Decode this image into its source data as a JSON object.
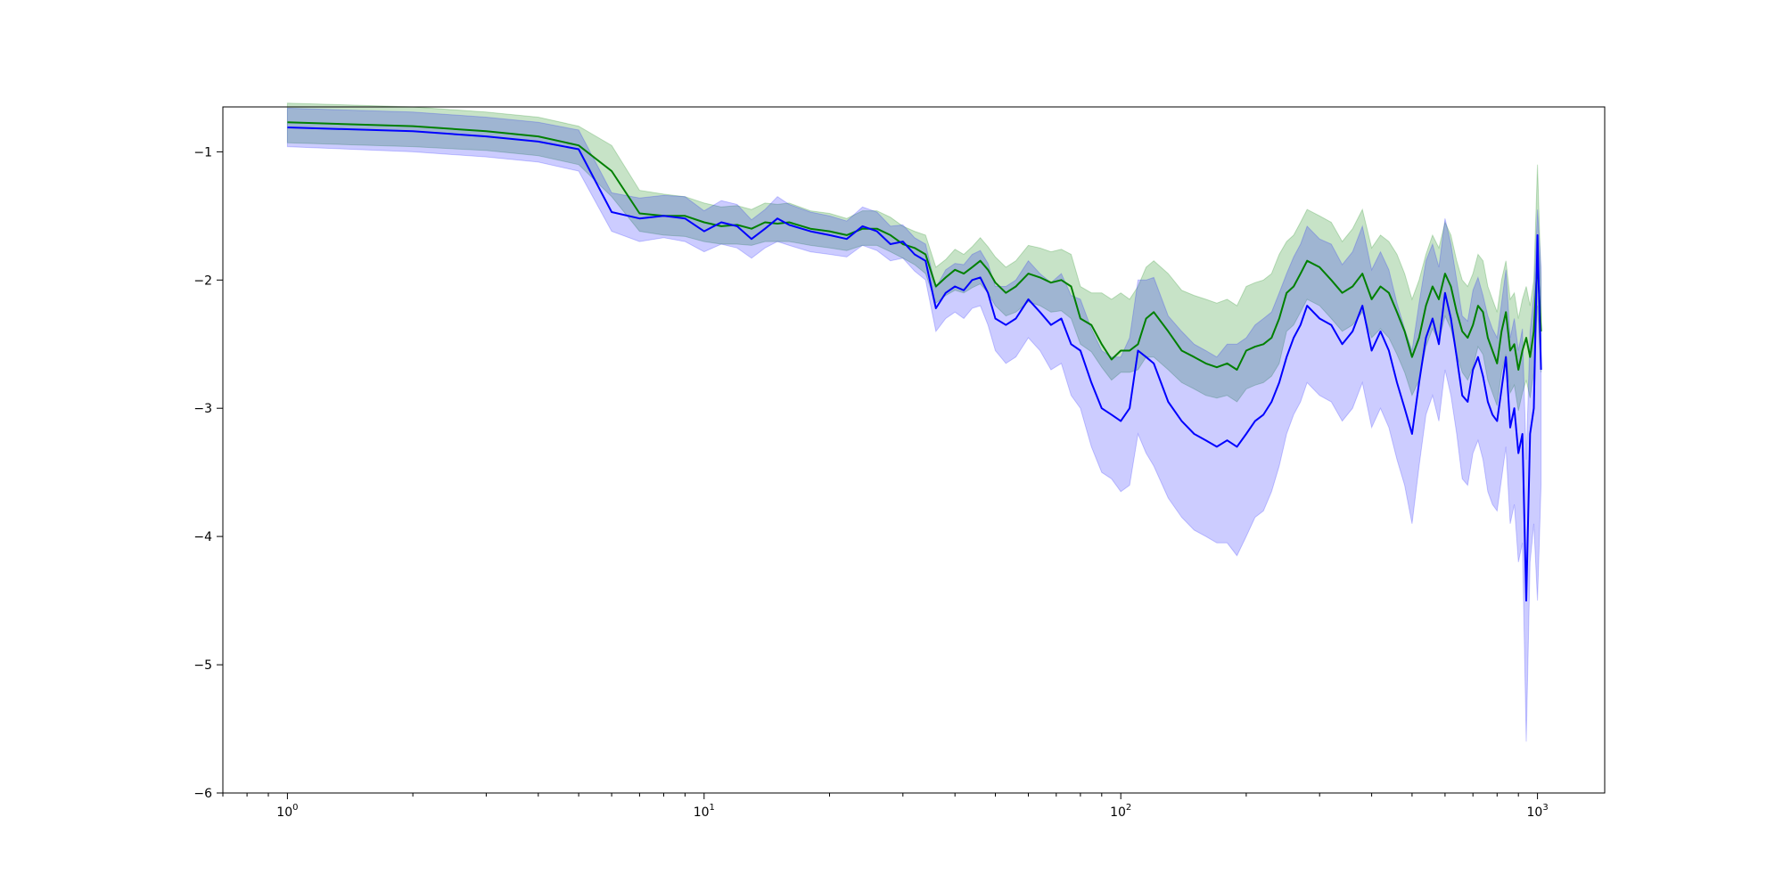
{
  "chart_data": {
    "type": "line",
    "title": "",
    "xlabel": "",
    "ylabel": "",
    "x_scale": "log",
    "xlim": [
      0.7,
      1450
    ],
    "ylim": [
      -6,
      -0.65
    ],
    "grid": false,
    "legend": "none",
    "x_ticks": [
      {
        "value": 1,
        "base": "10",
        "exp": "0"
      },
      {
        "value": 10,
        "base": "10",
        "exp": "1"
      },
      {
        "value": 100,
        "base": "10",
        "exp": "2"
      },
      {
        "value": 1000,
        "base": "10",
        "exp": "3"
      }
    ],
    "y_ticks": [
      {
        "value": -1,
        "label": "−1"
      },
      {
        "value": -2,
        "label": "−2"
      },
      {
        "value": -3,
        "label": "−3"
      },
      {
        "value": -4,
        "label": "−4"
      },
      {
        "value": -5,
        "label": "−5"
      },
      {
        "value": -6,
        "label": "−6"
      }
    ],
    "x": [
      1,
      2,
      3,
      4,
      5,
      6,
      7,
      8,
      9,
      10,
      11,
      12,
      13,
      14,
      15,
      16,
      18,
      20,
      22,
      24,
      26,
      28,
      30,
      32,
      34,
      36,
      38,
      40,
      42,
      44,
      46,
      48,
      50,
      53,
      56,
      60,
      64,
      68,
      72,
      76,
      80,
      85,
      90,
      95,
      100,
      105,
      110,
      115,
      120,
      130,
      140,
      150,
      160,
      170,
      180,
      190,
      200,
      210,
      220,
      230,
      240,
      250,
      260,
      270,
      280,
      300,
      320,
      340,
      360,
      380,
      400,
      420,
      440,
      460,
      480,
      500,
      520,
      540,
      560,
      580,
      600,
      620,
      640,
      660,
      680,
      700,
      720,
      740,
      760,
      780,
      800,
      820,
      840,
      860,
      880,
      900,
      920,
      940,
      960,
      980,
      1000,
      1020
    ],
    "series": [
      {
        "color": "#008000",
        "band_color": "#008000",
        "band_opacity": 0.22,
        "values": [
          -0.77,
          -0.8,
          -0.84,
          -0.88,
          -0.95,
          -1.15,
          -1.48,
          -1.5,
          -1.5,
          -1.55,
          -1.58,
          -1.57,
          -1.6,
          -1.55,
          -1.56,
          -1.55,
          -1.6,
          -1.62,
          -1.65,
          -1.6,
          -1.6,
          -1.65,
          -1.72,
          -1.75,
          -1.8,
          -2.05,
          -1.98,
          -1.92,
          -1.95,
          -1.9,
          -1.85,
          -1.92,
          -2.02,
          -2.1,
          -2.05,
          -1.95,
          -1.98,
          -2.02,
          -2.0,
          -2.05,
          -2.3,
          -2.35,
          -2.5,
          -2.62,
          -2.55,
          -2.55,
          -2.5,
          -2.3,
          -2.25,
          -2.4,
          -2.55,
          -2.6,
          -2.65,
          -2.68,
          -2.65,
          -2.7,
          -2.55,
          -2.52,
          -2.5,
          -2.45,
          -2.3,
          -2.1,
          -2.05,
          -1.95,
          -1.85,
          -1.9,
          -2.0,
          -2.1,
          -2.05,
          -1.95,
          -2.15,
          -2.05,
          -2.1,
          -2.25,
          -2.4,
          -2.6,
          -2.45,
          -2.2,
          -2.05,
          -2.15,
          -1.95,
          -2.05,
          -2.25,
          -2.4,
          -2.45,
          -2.35,
          -2.2,
          -2.25,
          -2.45,
          -2.55,
          -2.65,
          -2.4,
          -2.25,
          -2.55,
          -2.5,
          -2.7,
          -2.55,
          -2.45,
          -2.6,
          -2.4,
          -1.85,
          -2.4
        ],
        "lower": [
          -0.93,
          -0.96,
          -0.99,
          -1.03,
          -1.1,
          -1.35,
          -1.62,
          -1.65,
          -1.66,
          -1.7,
          -1.72,
          -1.72,
          -1.73,
          -1.7,
          -1.7,
          -1.7,
          -1.73,
          -1.75,
          -1.77,
          -1.73,
          -1.73,
          -1.78,
          -1.83,
          -1.88,
          -1.95,
          -2.18,
          -2.12,
          -2.08,
          -2.1,
          -2.06,
          -2.03,
          -2.1,
          -2.2,
          -2.28,
          -2.25,
          -2.17,
          -2.2,
          -2.25,
          -2.24,
          -2.3,
          -2.5,
          -2.56,
          -2.68,
          -2.78,
          -2.72,
          -2.72,
          -2.7,
          -2.6,
          -2.6,
          -2.7,
          -2.8,
          -2.85,
          -2.9,
          -2.92,
          -2.9,
          -2.95,
          -2.85,
          -2.82,
          -2.8,
          -2.75,
          -2.65,
          -2.4,
          -2.35,
          -2.25,
          -2.15,
          -2.2,
          -2.3,
          -2.4,
          -2.35,
          -2.25,
          -2.45,
          -2.38,
          -2.45,
          -2.58,
          -2.72,
          -2.9,
          -2.78,
          -2.52,
          -2.38,
          -2.48,
          -2.28,
          -2.38,
          -2.58,
          -2.72,
          -2.78,
          -2.68,
          -2.52,
          -2.58,
          -2.78,
          -2.88,
          -2.98,
          -2.72,
          -2.58,
          -2.88,
          -2.82,
          -3.02,
          -2.88,
          -2.78,
          -2.92,
          -2.72,
          -2.2,
          -2.72
        ],
        "upper": [
          -0.62,
          -0.65,
          -0.69,
          -0.73,
          -0.8,
          -0.95,
          -1.3,
          -1.33,
          -1.35,
          -1.4,
          -1.43,
          -1.42,
          -1.45,
          -1.4,
          -1.41,
          -1.4,
          -1.46,
          -1.48,
          -1.52,
          -1.46,
          -1.46,
          -1.51,
          -1.58,
          -1.62,
          -1.65,
          -1.9,
          -1.84,
          -1.76,
          -1.8,
          -1.74,
          -1.67,
          -1.74,
          -1.82,
          -1.9,
          -1.85,
          -1.73,
          -1.75,
          -1.78,
          -1.76,
          -1.8,
          -2.05,
          -2.1,
          -2.1,
          -2.15,
          -2.1,
          -2.15,
          -2.05,
          -1.9,
          -1.85,
          -1.95,
          -2.08,
          -2.12,
          -2.15,
          -2.18,
          -2.15,
          -2.2,
          -2.05,
          -2.02,
          -2.0,
          -1.95,
          -1.8,
          -1.7,
          -1.65,
          -1.55,
          -1.45,
          -1.5,
          -1.55,
          -1.7,
          -1.6,
          -1.45,
          -1.75,
          -1.65,
          -1.7,
          -1.8,
          -1.95,
          -2.15,
          -2.0,
          -1.8,
          -1.65,
          -1.75,
          -1.55,
          -1.65,
          -1.85,
          -2.0,
          -2.05,
          -1.95,
          -1.8,
          -1.85,
          -2.05,
          -2.15,
          -2.25,
          -2.0,
          -1.85,
          -2.15,
          -2.1,
          -2.3,
          -2.15,
          -2.05,
          -2.2,
          -2.0,
          -1.1,
          -2.0
        ]
      },
      {
        "color": "#0000ff",
        "band_color": "#0000ff",
        "band_opacity": 0.2,
        "values": [
          -0.81,
          -0.84,
          -0.88,
          -0.92,
          -0.98,
          -1.47,
          -1.52,
          -1.5,
          -1.52,
          -1.62,
          -1.55,
          -1.58,
          -1.68,
          -1.6,
          -1.52,
          -1.57,
          -1.62,
          -1.65,
          -1.68,
          -1.58,
          -1.62,
          -1.72,
          -1.7,
          -1.8,
          -1.85,
          -2.22,
          -2.1,
          -2.05,
          -2.08,
          -2.0,
          -1.98,
          -2.1,
          -2.3,
          -2.35,
          -2.3,
          -2.15,
          -2.25,
          -2.35,
          -2.3,
          -2.5,
          -2.55,
          -2.8,
          -3.0,
          -3.05,
          -3.1,
          -3.0,
          -2.55,
          -2.6,
          -2.65,
          -2.95,
          -3.1,
          -3.2,
          -3.25,
          -3.3,
          -3.25,
          -3.3,
          -3.2,
          -3.1,
          -3.05,
          -2.95,
          -2.8,
          -2.6,
          -2.45,
          -2.35,
          -2.2,
          -2.3,
          -2.35,
          -2.5,
          -2.4,
          -2.2,
          -2.55,
          -2.4,
          -2.55,
          -2.8,
          -3.0,
          -3.2,
          -2.8,
          -2.45,
          -2.3,
          -2.5,
          -2.1,
          -2.3,
          -2.6,
          -2.9,
          -2.95,
          -2.7,
          -2.6,
          -2.75,
          -2.95,
          -3.05,
          -3.1,
          -2.85,
          -2.6,
          -3.15,
          -3.0,
          -3.35,
          -3.2,
          -4.5,
          -3.2,
          -3.0,
          -1.65,
          -2.7
        ],
        "lower": [
          -0.96,
          -1.0,
          -1.04,
          -1.08,
          -1.15,
          -1.62,
          -1.7,
          -1.67,
          -1.7,
          -1.78,
          -1.72,
          -1.75,
          -1.83,
          -1.75,
          -1.7,
          -1.73,
          -1.78,
          -1.8,
          -1.82,
          -1.73,
          -1.77,
          -1.85,
          -1.83,
          -1.93,
          -2.0,
          -2.4,
          -2.3,
          -2.25,
          -2.3,
          -2.22,
          -2.2,
          -2.35,
          -2.55,
          -2.65,
          -2.6,
          -2.45,
          -2.55,
          -2.7,
          -2.65,
          -2.9,
          -3.0,
          -3.3,
          -3.5,
          -3.55,
          -3.65,
          -3.6,
          -3.2,
          -3.35,
          -3.45,
          -3.7,
          -3.85,
          -3.95,
          -4.0,
          -4.05,
          -4.05,
          -4.15,
          -4.0,
          -3.85,
          -3.8,
          -3.65,
          -3.45,
          -3.2,
          -3.05,
          -2.95,
          -2.8,
          -2.9,
          -2.95,
          -3.1,
          -3.0,
          -2.8,
          -3.15,
          -3.0,
          -3.15,
          -3.4,
          -3.6,
          -3.9,
          -3.45,
          -3.05,
          -2.9,
          -3.1,
          -2.7,
          -2.9,
          -3.2,
          -3.55,
          -3.6,
          -3.35,
          -3.25,
          -3.4,
          -3.65,
          -3.75,
          -3.8,
          -3.55,
          -3.3,
          -3.9,
          -3.75,
          -4.2,
          -4.05,
          -5.6,
          -4.2,
          -3.9,
          -4.5,
          -3.6
        ],
        "upper": [
          -0.66,
          -0.69,
          -0.73,
          -0.77,
          -0.83,
          -1.32,
          -1.36,
          -1.34,
          -1.35,
          -1.46,
          -1.38,
          -1.41,
          -1.53,
          -1.45,
          -1.35,
          -1.41,
          -1.47,
          -1.5,
          -1.54,
          -1.43,
          -1.47,
          -1.58,
          -1.57,
          -1.67,
          -1.72,
          -2.06,
          -1.92,
          -1.87,
          -1.88,
          -1.8,
          -1.77,
          -1.87,
          -2.05,
          -2.05,
          -2.0,
          -1.85,
          -1.95,
          -2.02,
          -1.95,
          -2.12,
          -2.15,
          -2.38,
          -2.55,
          -2.6,
          -2.6,
          -2.45,
          -2.0,
          -2.0,
          -1.98,
          -2.28,
          -2.4,
          -2.5,
          -2.55,
          -2.6,
          -2.5,
          -2.5,
          -2.45,
          -2.35,
          -2.3,
          -2.25,
          -2.1,
          -1.95,
          -1.82,
          -1.72,
          -1.58,
          -1.68,
          -1.72,
          -1.88,
          -1.78,
          -1.58,
          -1.92,
          -1.78,
          -1.92,
          -2.18,
          -2.38,
          -2.55,
          -2.18,
          -1.85,
          -1.72,
          -1.9,
          -1.52,
          -1.72,
          -2.0,
          -2.28,
          -2.32,
          -2.08,
          -1.98,
          -2.12,
          -2.28,
          -2.38,
          -2.45,
          -2.18,
          -1.92,
          -2.45,
          -2.3,
          -2.55,
          -2.38,
          -3.4,
          -2.4,
          -2.12,
          -1.45,
          -1.9
        ]
      }
    ]
  }
}
